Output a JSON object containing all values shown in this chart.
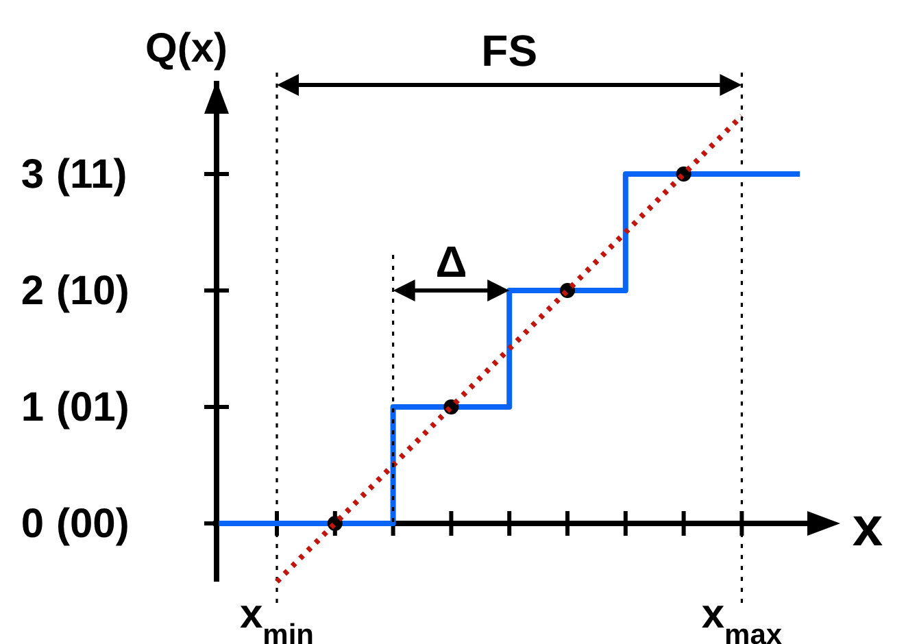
{
  "chart_data": {
    "type": "step",
    "xlabel": "x",
    "ylabel": "Q(x)",
    "categories": [
      null,
      "x$_{min}$",
      null,
      null,
      null,
      null,
      null,
      null,
      null,
      "x$_{max}$",
      null
    ],
    "ylim": [
      -0.5,
      3.8
    ],
    "yticks": [
      0,
      1,
      2,
      3
    ],
    "series": [
      {
        "color": "#0a64f5",
        "values": [
          0,
          0,
          0,
          1,
          1,
          2,
          2,
          3,
          3,
          3,
          3
        ]
      },
      {
        "type": "line",
        "color": "#c0160e",
        "line_style": "dotted",
        "values": [
          null,
          -0.5,
          0,
          0.5,
          1,
          1.5,
          2,
          2.5,
          3,
          3.5,
          null
        ]
      },
      {
        "type": "scatter",
        "color": "#000000",
        "marker": "circle",
        "values": [
          null,
          null,
          0,
          null,
          1,
          null,
          2,
          null,
          3,
          null,
          null
        ]
      }
    ],
    "ref_lines": [
      {
        "axis": "x",
        "value": "x$_{min}$",
        "color": "#000000",
        "line_style": "dotted"
      },
      {
        "axis": "x",
        "value": "x$_{max}$",
        "color": "#000000",
        "line_style": "dotted"
      }
    ],
    "annotations": [
      "FS",
      "Δ",
      "(00)",
      "(01)",
      "(10)",
      "(11)"
    ]
  }
}
